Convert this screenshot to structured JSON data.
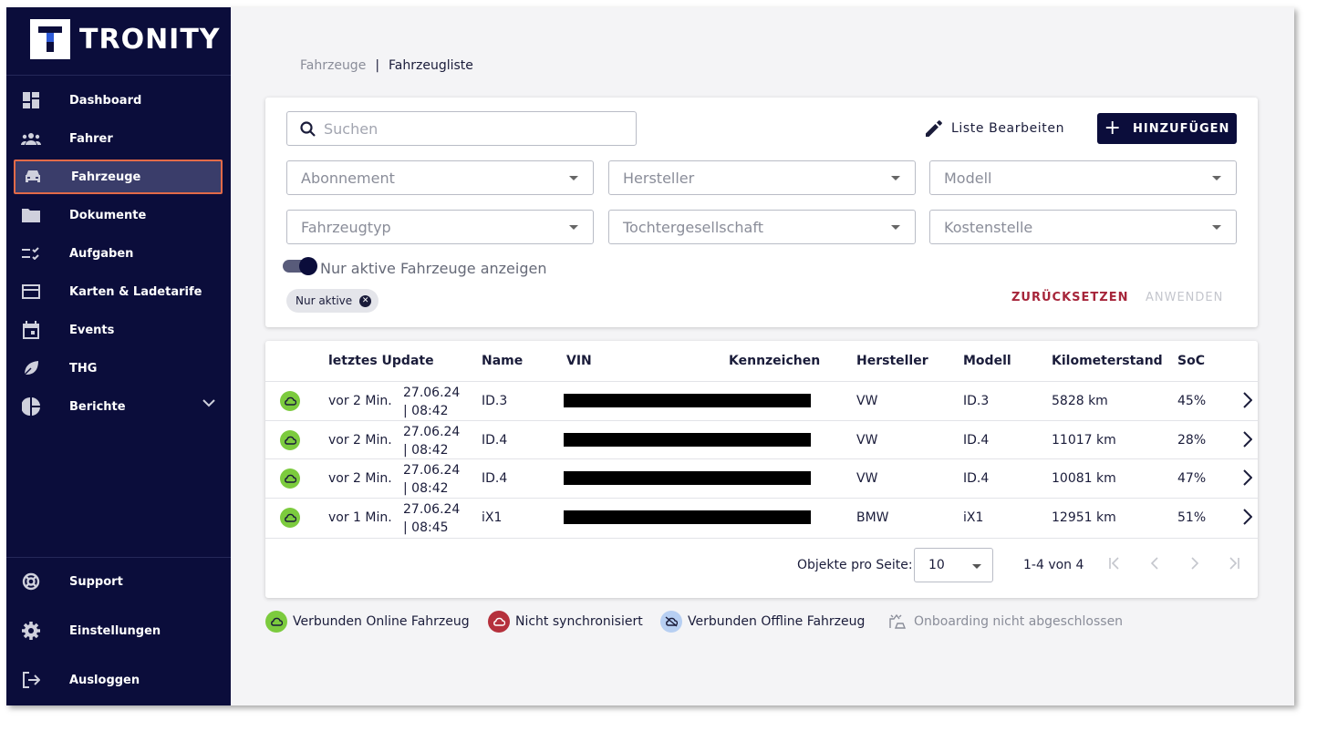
{
  "app": {
    "logo_letter": "T",
    "logo_text": "TRONITY"
  },
  "sidebar": {
    "items": [
      {
        "label": "Dashboard",
        "icon": "dashboard-icon"
      },
      {
        "label": "Fahrer",
        "icon": "people-icon"
      },
      {
        "label": "Fahrzeuge",
        "icon": "car-icon",
        "active": true
      },
      {
        "label": "Dokumente",
        "icon": "folder-icon"
      },
      {
        "label": "Aufgaben",
        "icon": "task-list-icon"
      },
      {
        "label": "Karten & Ladetarife",
        "icon": "card-icon"
      },
      {
        "label": "Events",
        "icon": "calendar-icon"
      },
      {
        "label": "THG",
        "icon": "leaf-icon"
      },
      {
        "label": "Berichte",
        "icon": "pie-chart-icon"
      }
    ],
    "bottom": [
      {
        "label": "Support",
        "icon": "support-icon"
      },
      {
        "label": "Einstellungen",
        "icon": "gear-icon"
      },
      {
        "label": "Ausloggen",
        "icon": "logout-icon"
      }
    ]
  },
  "breadcrumb": {
    "parent": "Fahrzeuge",
    "separator": "|",
    "current": "Fahrzeugliste"
  },
  "filters": {
    "search_placeholder": "Suchen",
    "edit_label": "Liste Bearbeiten",
    "add_label": "HINZUFÜGEN",
    "selects": [
      "Abonnement",
      "Hersteller",
      "Modell",
      "Fahrzeugtyp",
      "Tochtergesellschaft",
      "Kostenstelle"
    ],
    "toggle_label": "Nur aktive Fahrzeuge anzeigen",
    "toggle_on": true,
    "chip": "Nur aktive",
    "reset_label": "ZURÜCKSETZEN",
    "apply_label": "ANWENDEN"
  },
  "table": {
    "columns": [
      "letztes Update",
      "Name",
      "VIN",
      "Kennzeichen",
      "Hersteller",
      "Modell",
      "Kilometerstand",
      "SoC"
    ],
    "rows": [
      {
        "ago": "vor 2 Min.",
        "date": "27.06.24",
        "time": "| 08:42",
        "name": "ID.3",
        "maker": "VW",
        "model": "ID.3",
        "km": "5828 km",
        "soc": "45%"
      },
      {
        "ago": "vor 2 Min.",
        "date": "27.06.24",
        "time": "| 08:42",
        "name": "ID.4",
        "maker": "VW",
        "model": "ID.4",
        "km": "11017 km",
        "soc": "28%"
      },
      {
        "ago": "vor 2 Min.",
        "date": "27.06.24",
        "time": "| 08:42",
        "name": "ID.4",
        "maker": "VW",
        "model": "ID.4",
        "km": "10081 km",
        "soc": "47%"
      },
      {
        "ago": "vor 1 Min.",
        "date": "27.06.24",
        "time": "| 08:45",
        "name": "iX1",
        "maker": "BMW",
        "model": "iX1",
        "km": "12951 km",
        "soc": "51%"
      }
    ],
    "per_page_label": "Objekte pro Seite:",
    "per_page_value": "10",
    "range": "1-4 von 4"
  },
  "legend": [
    {
      "label": "Verbunden Online Fahrzeug",
      "color": "#7ccb3e"
    },
    {
      "label": "Nicht synchronisiert",
      "color": "#b5303c"
    },
    {
      "label": "Verbunden Offline Fahrzeug",
      "color": "#b7cff2"
    },
    {
      "label": "Onboarding nicht abgeschlossen",
      "color": "#8a8d99"
    }
  ],
  "colors": {
    "sidebar_bg": "#0b0d3b",
    "accent_active_border": "#e26a48",
    "online": "#7ccb3e",
    "reset": "#a6253a"
  }
}
